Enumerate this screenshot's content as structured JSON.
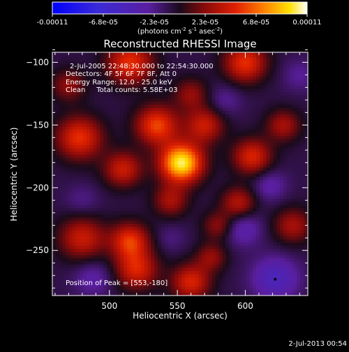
{
  "colorbar": {
    "tick_labels": [
      "-0.00011",
      "-6.8e-05",
      "-2.3e-05",
      "2.3e-05",
      "6.8e-05",
      "0.00011"
    ],
    "range": [
      -0.00011,
      0.00011
    ],
    "unit_label": "(photons cm",
    "unit_sup1": "-2",
    "unit_mid": " s",
    "unit_sup2": "-1",
    "unit_end": " asec",
    "unit_sup3": "-2",
    "unit_close": ")"
  },
  "chart_data": {
    "type": "heatmap",
    "title": "Reconstructed RHESSI Image",
    "xlabel": "Heliocentric X (arcsec)",
    "ylabel": "Heliocentric Y (arcsec)",
    "xlim": [
      458,
      646
    ],
    "ylim": [
      -286,
      -92
    ],
    "x_ticks": [
      500,
      550,
      600
    ],
    "y_ticks": [
      -100,
      -150,
      -200,
      -250
    ],
    "colormap": "blue-purple-red-orange-yellow-white",
    "annotations": [
      "2-Jul-2005 22:48:30.000 to 22:54:30.000",
      "Detectors: 4F 5F 6F 7F 8F, Att 0",
      "Energy Range: 12.0 - 25.0 keV",
      "Clean     Total counts: 5.58E+03"
    ],
    "peak_label": "Position of Peak = [553,-180]",
    "peak": [
      553,
      -180
    ],
    "blobs": [
      {
        "x": 553,
        "y": -180,
        "a": 1.0,
        "s": 11
      },
      {
        "x": 515,
        "y": -100,
        "a": 0.55,
        "s": 12
      },
      {
        "x": 478,
        "y": -160,
        "a": 0.55,
        "s": 12
      },
      {
        "x": 480,
        "y": -240,
        "a": 0.45,
        "s": 12
      },
      {
        "x": 510,
        "y": -185,
        "a": 0.45,
        "s": 10
      },
      {
        "x": 520,
        "y": -265,
        "a": 0.5,
        "s": 11
      },
      {
        "x": 515,
        "y": -242,
        "a": 0.55,
        "s": 10
      },
      {
        "x": 535,
        "y": -150,
        "a": 0.6,
        "s": 11
      },
      {
        "x": 570,
        "y": -150,
        "a": 0.45,
        "s": 10
      },
      {
        "x": 560,
        "y": -275,
        "a": 0.5,
        "s": 10
      },
      {
        "x": 575,
        "y": -255,
        "a": 0.3,
        "s": 8
      },
      {
        "x": 600,
        "y": -100,
        "a": 0.55,
        "s": 11
      },
      {
        "x": 605,
        "y": -175,
        "a": 0.5,
        "s": 10
      },
      {
        "x": 628,
        "y": -150,
        "a": 0.35,
        "s": 9
      },
      {
        "x": 595,
        "y": -212,
        "a": 0.4,
        "s": 9
      },
      {
        "x": 580,
        "y": -230,
        "a": 0.3,
        "s": 8
      },
      {
        "x": 635,
        "y": -230,
        "a": 0.35,
        "s": 10
      },
      {
        "x": 470,
        "y": -118,
        "a": 0.3,
        "s": 9
      },
      {
        "x": 545,
        "y": -210,
        "a": 0.35,
        "s": 9
      },
      {
        "x": 560,
        "y": -125,
        "a": 0.3,
        "s": 9
      },
      {
        "x": 488,
        "y": -272,
        "a": -0.2,
        "s": 10
      },
      {
        "x": 622,
        "y": -272,
        "a": -0.35,
        "s": 12
      },
      {
        "x": 598,
        "y": -232,
        "a": -0.25,
        "s": 10
      },
      {
        "x": 618,
        "y": -198,
        "a": -0.2,
        "s": 9
      },
      {
        "x": 585,
        "y": -130,
        "a": -0.15,
        "s": 9
      },
      {
        "x": 640,
        "y": -110,
        "a": -0.15,
        "s": 9
      },
      {
        "x": 480,
        "y": -210,
        "a": -0.12,
        "s": 9
      },
      {
        "x": 545,
        "y": -240,
        "a": -0.1,
        "s": 8
      }
    ]
  },
  "footer": {
    "date": "2-Jul-2013 00:54"
  }
}
